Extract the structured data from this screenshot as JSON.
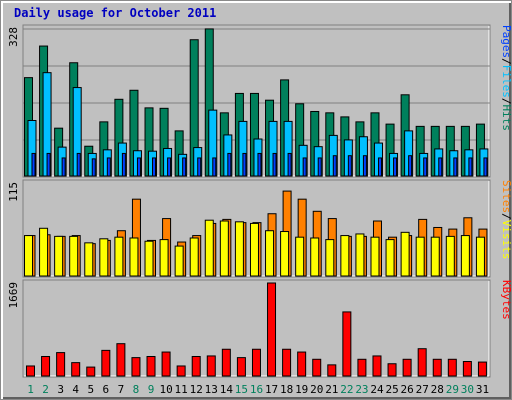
{
  "title": "Daily usage for October 2011",
  "colors": {
    "hits": "#00805c",
    "files": "#00c0ff",
    "pages": "#0040ff",
    "visits": "#ffff00",
    "sites": "#ff8000",
    "kbytes": "#ff0000",
    "weekend_day": "#00805c",
    "weekday_day": "#000000",
    "separator_slash": "#000000",
    "panel_bg": "#c0c0c0"
  },
  "chart_data": {
    "type": "bar",
    "title": "Daily usage for October 2011",
    "categories": [
      "1",
      "2",
      "3",
      "4",
      "5",
      "6",
      "7",
      "8",
      "9",
      "10",
      "11",
      "12",
      "13",
      "14",
      "15",
      "16",
      "17",
      "18",
      "19",
      "20",
      "21",
      "22",
      "23",
      "24",
      "25",
      "26",
      "27",
      "28",
      "29",
      "30",
      "31"
    ],
    "weekend_days": [
      "1",
      "2",
      "8",
      "9",
      "15",
      "16",
      "22",
      "23",
      "29",
      "30"
    ],
    "panels": [
      {
        "name": "hits-files-pages",
        "ymax_label": "328",
        "ymax": 328,
        "axis_label": {
          "parts": [
            "Pages",
            "/",
            "Files",
            "/",
            "Hits"
          ],
          "colors": [
            "pages",
            "separator_slash",
            "files",
            "separator_slash",
            "hits"
          ]
        },
        "series": [
          {
            "name": "Hits",
            "color": "hits",
            "values": [
              218,
              288,
              106,
              251,
              66,
              120,
              170,
              190,
              151,
              150,
              100,
              302,
              326,
              140,
              183,
              183,
              168,
              213,
              160,
              143,
              140,
              131,
              120,
              140,
              115,
              180,
              110,
              110,
              110,
              110,
              115
            ]
          },
          {
            "name": "Files",
            "color": "files",
            "values": [
              123,
              229,
              64,
              196,
              50,
              58,
              73,
              56,
              55,
              61,
              48,
              63,
              146,
              91,
              121,
              82,
              121,
              121,
              68,
              65,
              90,
              80,
              87,
              73,
              50,
              100,
              50,
              60,
              56,
              58,
              60
            ]
          },
          {
            "name": "Pages",
            "color": "pages",
            "values": [
              50,
              50,
              40,
              50,
              38,
              40,
              50,
              40,
              40,
              40,
              40,
              40,
              40,
              50,
              50,
              50,
              50,
              50,
              40,
              40,
              45,
              45,
              45,
              40,
              40,
              45,
              40,
              40,
              40,
              40,
              40
            ]
          }
        ]
      },
      {
        "name": "sites-visits",
        "ymax_label": "115",
        "ymax": 115,
        "axis_label": {
          "parts": [
            "Sites",
            "/",
            "Visits"
          ],
          "colors": [
            "sites",
            "separator_slash",
            "visits"
          ]
        },
        "series": [
          {
            "name": "Sites",
            "color": "sites",
            "values": [
              50,
              51,
              49,
              50,
              40,
              44,
              56,
              95,
              44,
              71,
              42,
              50,
              65,
              70,
              66,
              66,
              77,
              105,
              95,
              80,
              71,
              49,
              49,
              68,
              48,
              50,
              70,
              60,
              58,
              72,
              58
            ]
          },
          {
            "name": "Visits",
            "color": "visits",
            "values": [
              50,
              59,
              49,
              49,
              41,
              46,
              48,
              47,
              43,
              45,
              37,
              47,
              69,
              68,
              67,
              65,
              56,
              55,
              48,
              47,
              45,
              50,
              52,
              48,
              45,
              54,
              48,
              48,
              49,
              50,
              48
            ]
          }
        ]
      },
      {
        "name": "kbytes",
        "ymax_label": "1669",
        "ymax": 1669,
        "axis_label": {
          "parts": [
            "KBytes"
          ],
          "colors": [
            "kbytes"
          ]
        },
        "series": [
          {
            "name": "KBytes",
            "color": "kbytes",
            "values": [
              180,
              350,
              420,
              240,
              160,
              460,
              580,
              330,
              350,
              430,
              180,
              350,
              360,
              480,
              330,
              480,
              1669,
              480,
              430,
              300,
              200,
              1150,
              300,
              360,
              220,
              300,
              490,
              300,
              300,
              260,
              250
            ]
          }
        ]
      }
    ]
  }
}
